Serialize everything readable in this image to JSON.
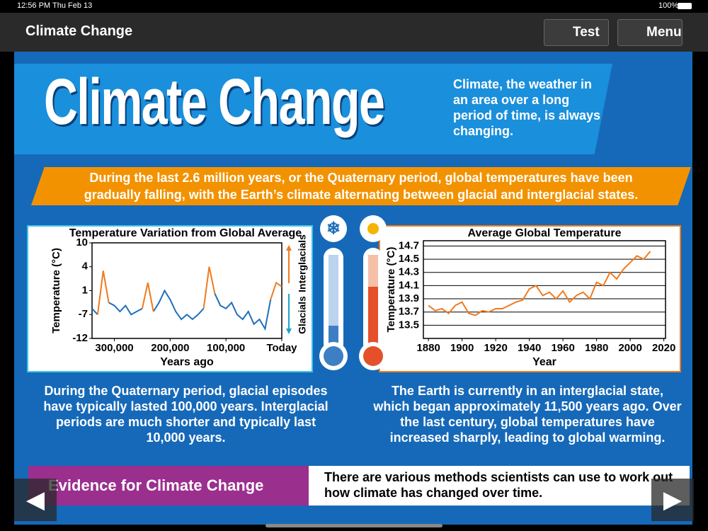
{
  "status": {
    "time": "12:56 PM",
    "date": "Thu Feb 13",
    "battery": "100%"
  },
  "nav": {
    "title": "Climate Change",
    "buttons": [
      "Test",
      "Menu"
    ]
  },
  "hero": {
    "title": "Climate Change",
    "blurb": "Climate, the weather in an area over a long period of time, is always changing."
  },
  "banner": "During the last 2.6 million years, or the Quaternary period, global temperatures have been gradually falling, with the Earth’s climate alternating between glacial and interglacial states.",
  "captions": [
    "During the Quaternary period, glacial episodes have typically lasted 100,000 years. Interglacial periods are much shorter and typically last 10,000 years.",
    "The Earth is currently in an interglacial state, which began approximately 11,500 years ago. Over the last century, global temperatures have increased sharply, leading to global warming."
  ],
  "evidence": {
    "title": "Evidence for Climate Change",
    "text": "There are various methods scientists can use to work out how climate has changed over time."
  },
  "chart_data": [
    {
      "type": "line",
      "title": "Temperature Variation from Global Average",
      "x_label": "Years ago",
      "y_label": "Temperature (°C)",
      "annotations": [
        "Interglacials",
        "Glacials"
      ],
      "x": [
        340000,
        330000,
        320000,
        310000,
        300000,
        290000,
        280000,
        270000,
        260000,
        250000,
        240000,
        230000,
        220000,
        210000,
        200000,
        190000,
        180000,
        170000,
        160000,
        150000,
        140000,
        130000,
        120000,
        110000,
        100000,
        90000,
        80000,
        70000,
        60000,
        50000,
        40000,
        30000,
        20000,
        10000,
        0
      ],
      "series": [
        {
          "color": "#1f6fb8",
          "values": [
            -5,
            -7,
            null,
            -3,
            -4,
            -6,
            -4,
            -7,
            -6,
            -5,
            null,
            -6,
            -3,
            1,
            -2,
            -6,
            -8,
            -7,
            -8,
            -7,
            -5,
            null,
            0,
            -4,
            -5,
            -3,
            -7,
            -8,
            -6,
            -9,
            -8,
            -10,
            -2,
            null,
            null
          ]
        },
        {
          "color": "#f07a1e",
          "values": [
            null,
            -7,
            3.5,
            -3,
            null,
            null,
            null,
            null,
            null,
            -5,
            2,
            -6,
            null,
            null,
            null,
            null,
            null,
            null,
            null,
            null,
            -5,
            4,
            0,
            null,
            null,
            null,
            null,
            null,
            null,
            null,
            null,
            null,
            -2,
            2,
            1.5
          ]
        }
      ],
      "xlim": [
        340000,
        0
      ],
      "xticks": [
        {
          "value": 300000,
          "label": "300,000"
        },
        {
          "value": 200000,
          "label": "200,000"
        },
        {
          "value": 100000,
          "label": "100,000"
        },
        {
          "value": 0,
          "label": "Today"
        }
      ],
      "ylim": [
        -12,
        10
      ],
      "yticks": [
        10,
        4,
        1,
        -7,
        -12
      ],
      "grid": false
    },
    {
      "type": "line",
      "title": "Average Global Temperature",
      "x_label": "Year",
      "y_label": "Temperature (°C)",
      "x": [
        1880,
        1884,
        1888,
        1892,
        1896,
        1900,
        1904,
        1908,
        1912,
        1916,
        1920,
        1924,
        1928,
        1932,
        1936,
        1940,
        1944,
        1948,
        1952,
        1956,
        1960,
        1964,
        1968,
        1972,
        1976,
        1980,
        1984,
        1988,
        1992,
        1996,
        2000,
        2004,
        2008,
        2012
      ],
      "series": [
        {
          "color": "#f07a1e",
          "values": [
            13.8,
            13.72,
            13.75,
            13.68,
            13.8,
            13.85,
            13.68,
            13.65,
            13.72,
            13.7,
            13.75,
            13.75,
            13.8,
            13.85,
            13.88,
            14.05,
            14.1,
            13.95,
            14.0,
            13.9,
            14.02,
            13.85,
            13.95,
            14.0,
            13.9,
            14.15,
            14.1,
            14.3,
            14.2,
            14.35,
            14.45,
            14.55,
            14.5,
            14.62
          ]
        }
      ],
      "xlim": [
        1877,
        2021
      ],
      "xticks": [
        1880,
        1900,
        1920,
        1940,
        1960,
        1980,
        2000,
        2020
      ],
      "ylim": [
        13.3,
        14.78
      ],
      "yticks": [
        13.5,
        13.7,
        13.9,
        14.1,
        14.3,
        14.5,
        14.7
      ],
      "grid": true
    }
  ]
}
